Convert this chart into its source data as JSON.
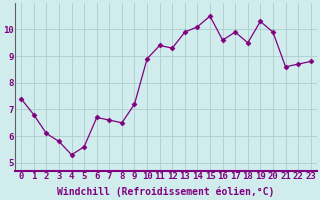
{
  "x": [
    0,
    1,
    2,
    3,
    4,
    5,
    6,
    7,
    8,
    9,
    10,
    11,
    12,
    13,
    14,
    15,
    16,
    17,
    18,
    19,
    20,
    21,
    22,
    23
  ],
  "y": [
    7.4,
    6.8,
    6.1,
    5.8,
    5.3,
    5.6,
    6.7,
    6.6,
    6.5,
    7.2,
    8.9,
    9.4,
    9.3,
    9.9,
    10.1,
    10.5,
    9.6,
    9.9,
    9.5,
    10.3,
    9.9,
    8.6,
    8.7,
    8.8
  ],
  "line_color": "#800080",
  "marker": "D",
  "marker_size": 2.5,
  "bg_color": "#d0ecec",
  "grid_color": "#aacece",
  "xlabel": "Windchill (Refroidissement éolien,°C)",
  "xlabel_fontsize": 7,
  "tick_label_color": "#800080",
  "xtick_labels": [
    "0",
    "1",
    "2",
    "3",
    "4",
    "5",
    "6",
    "7",
    "8",
    "9",
    "10",
    "11",
    "12",
    "13",
    "14",
    "15",
    "16",
    "17",
    "18",
    "19",
    "20",
    "21",
    "22",
    "23"
  ],
  "ytick_labels": [
    "5",
    "6",
    "7",
    "8",
    "9",
    "10"
  ],
  "yticks": [
    5,
    6,
    7,
    8,
    9,
    10
  ],
  "ylim": [
    4.7,
    11.0
  ],
  "xlim": [
    -0.5,
    23.5
  ],
  "tick_fontsize": 6.5,
  "spine_color": "#606060",
  "bottom_spine_color": "#800080",
  "xlabel_color": "#800080",
  "xlabel_fontweight": "bold"
}
